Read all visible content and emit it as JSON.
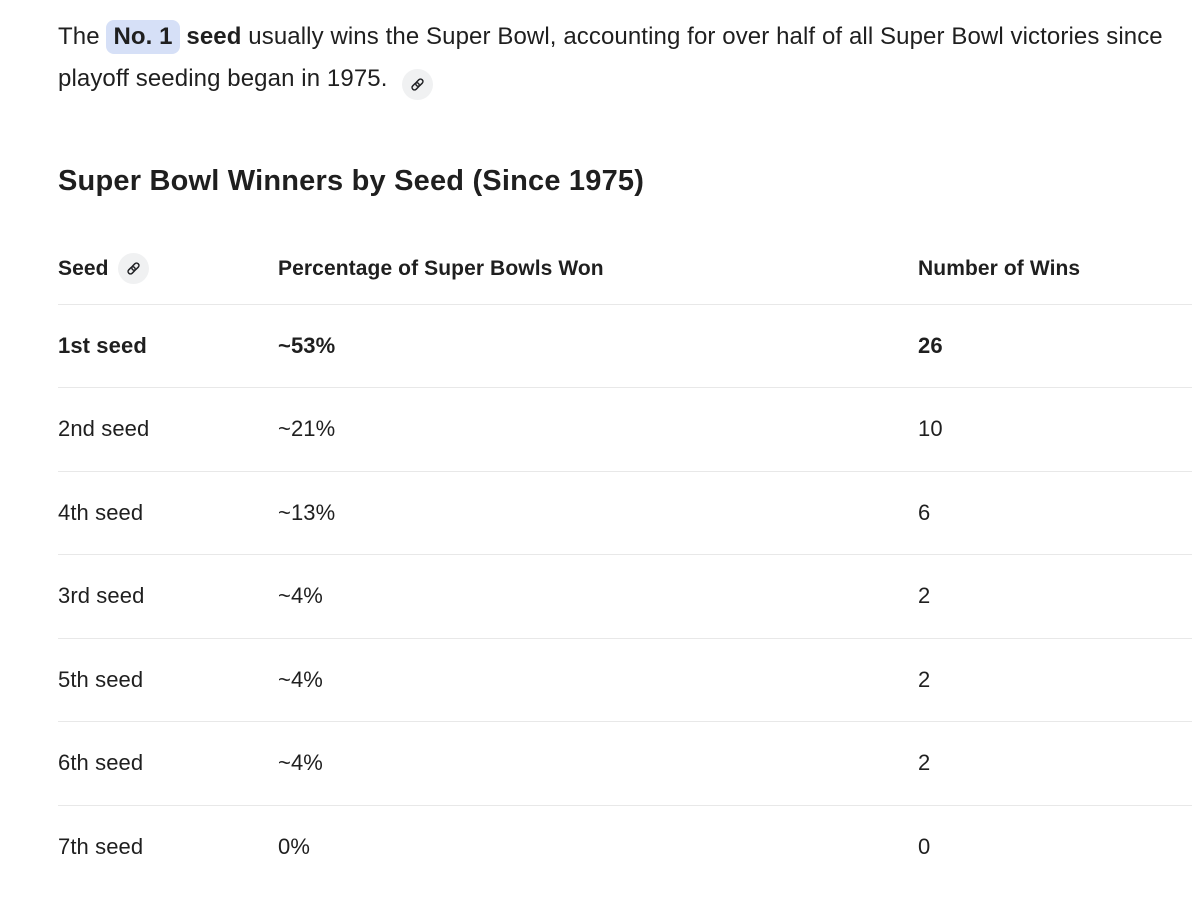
{
  "intro": {
    "text_before": "The ",
    "highlight_term": "No. 1",
    "bold_term": " seed",
    "text_after": " usually wins the Super Bowl, accounting for over half of all Super Bowl victories since playoff seeding began in 1975. "
  },
  "heading": "Super Bowl Winners by Seed (Since 1975)",
  "table": {
    "columns": [
      "Seed",
      "Percentage of Super Bowls Won",
      "Number of Wins"
    ],
    "rows": [
      {
        "seed": "1st seed",
        "percentage": "~53%",
        "wins": "26",
        "bold": true
      },
      {
        "seed": "2nd seed",
        "percentage": "~21%",
        "wins": "10",
        "bold": false
      },
      {
        "seed": "4th seed",
        "percentage": "~13%",
        "wins": "6",
        "bold": false
      },
      {
        "seed": "3rd seed",
        "percentage": "~4%",
        "wins": "2",
        "bold": false
      },
      {
        "seed": "5th seed",
        "percentage": "~4%",
        "wins": "2",
        "bold": false
      },
      {
        "seed": "6th seed",
        "percentage": "~4%",
        "wins": "2",
        "bold": false
      },
      {
        "seed": "7th seed",
        "percentage": "0%",
        "wins": "0",
        "bold": false
      }
    ]
  },
  "icons": {
    "citation": "link-icon"
  },
  "colors": {
    "text_color": "#1f1f1f",
    "highlight_bg": "#d6e0f7",
    "chip_bg": "#f0f1f2",
    "separator": "#e8e8e8",
    "icon_color": "#202124"
  }
}
